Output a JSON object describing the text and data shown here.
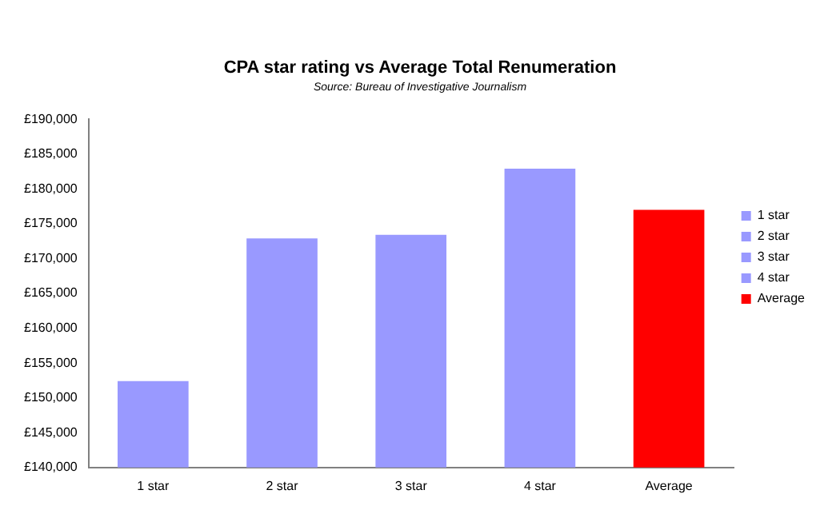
{
  "chart_data": {
    "type": "bar",
    "title": "CPA star rating vs Average Total Renumeration",
    "subtitle": "Source: Bureau of Investigative Journalism",
    "categories": [
      "1 star",
      "2 star",
      "3 star",
      "4 star",
      "Average"
    ],
    "series": [
      {
        "name": "1 star",
        "color": "#9999ff",
        "values": [
          152400,
          null,
          null,
          null,
          null
        ]
      },
      {
        "name": "2 star",
        "color": "#9999ff",
        "values": [
          null,
          172900,
          null,
          null,
          null
        ]
      },
      {
        "name": "3 star",
        "color": "#9999ff",
        "values": [
          null,
          null,
          173400,
          null,
          null
        ]
      },
      {
        "name": "4 star",
        "color": "#9999ff",
        "values": [
          null,
          null,
          null,
          182900,
          null
        ]
      },
      {
        "name": "Average",
        "color": "#ff0000",
        "values": [
          null,
          null,
          null,
          null,
          177000
        ]
      }
    ],
    "ylim": [
      140000,
      190000
    ],
    "yticks": [
      {
        "value": 140000,
        "label": "£140,000"
      },
      {
        "value": 145000,
        "label": "£145,000"
      },
      {
        "value": 150000,
        "label": "£150,000"
      },
      {
        "value": 155000,
        "label": "£155,000"
      },
      {
        "value": 160000,
        "label": "£160,000"
      },
      {
        "value": 165000,
        "label": "£165,000"
      },
      {
        "value": 170000,
        "label": "£170,000"
      },
      {
        "value": 175000,
        "label": "£175,000"
      },
      {
        "value": 180000,
        "label": "£180,000"
      },
      {
        "value": 185000,
        "label": "£185,000"
      },
      {
        "value": 190000,
        "label": "£190,000"
      }
    ],
    "grid": false,
    "legend": "right"
  }
}
